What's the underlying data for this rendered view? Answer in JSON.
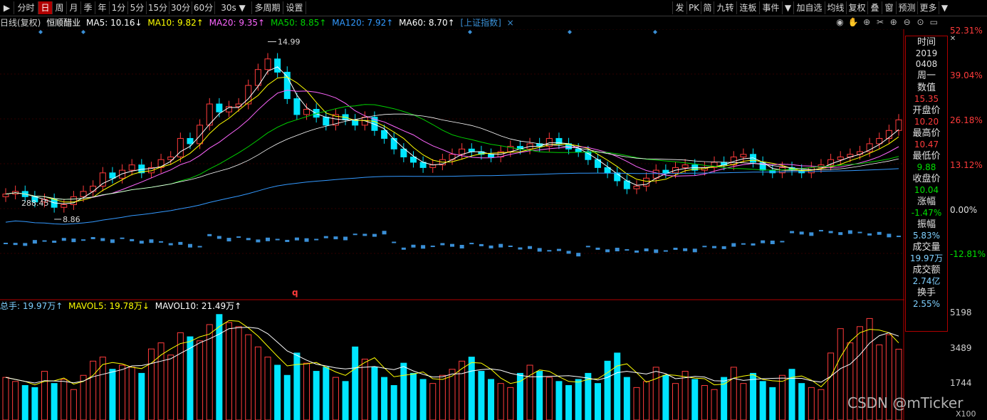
{
  "toolbar": {
    "left": [
      {
        "id": "menu",
        "label": "▶",
        "w": 20
      },
      {
        "id": "fenshi",
        "label": "分时",
        "w": 34
      },
      {
        "id": "ri",
        "label": "日",
        "w": 20,
        "active": true
      },
      {
        "id": "zhou",
        "label": "周",
        "w": 20
      },
      {
        "id": "yue",
        "label": "月",
        "w": 20
      },
      {
        "id": "ji",
        "label": "季",
        "w": 20
      },
      {
        "id": "nian",
        "label": "年",
        "w": 20
      },
      {
        "id": "m1",
        "label": "1分",
        "w": 26
      },
      {
        "id": "m5",
        "label": "5分",
        "w": 26
      },
      {
        "id": "m15",
        "label": "15分",
        "w": 32
      },
      {
        "id": "m30",
        "label": "30分",
        "w": 32
      },
      {
        "id": "m60",
        "label": "60分",
        "w": 32
      },
      {
        "id": "s30",
        "label": "30s ▼",
        "w": 52
      },
      {
        "id": "duozhouqi",
        "label": "多周期",
        "w": 44
      },
      {
        "id": "shezhi",
        "label": "设置",
        "w": 32
      }
    ],
    "right": [
      {
        "id": "fa",
        "label": "发",
        "w": 20
      },
      {
        "id": "pk",
        "label": "PK",
        "w": 20
      },
      {
        "id": "jian",
        "label": "简",
        "w": 18
      },
      {
        "id": "jiuzhuan",
        "label": "九转",
        "w": 32
      },
      {
        "id": "lianban",
        "label": "连板",
        "w": 32
      },
      {
        "id": "shijian",
        "label": "事件",
        "w": 32
      },
      {
        "id": "dd",
        "label": "▼",
        "w": 16
      },
      {
        "id": "jiazixuan",
        "label": "加自选",
        "w": 44
      },
      {
        "id": "junxian",
        "label": "均线",
        "w": 30
      },
      {
        "id": "fuquan",
        "label": "复权",
        "w": 30
      },
      {
        "id": "die",
        "label": "叠",
        "w": 20
      },
      {
        "id": "chuang",
        "label": "窗",
        "w": 20
      },
      {
        "id": "yuce",
        "label": "预测",
        "w": 30
      },
      {
        "id": "gengduo",
        "label": "更多",
        "w": 30
      },
      {
        "id": "arrow",
        "label": "▼",
        "w": 16
      }
    ]
  },
  "legend": {
    "kind": "日线(复权)",
    "name": "恒顺醋业",
    "ma5": "MA5: 10.16↓",
    "ma10": "MA10: 9.82↑",
    "ma20": "MA20: 9.35↑",
    "ma50": "MA50: 8.85↑",
    "ma120": "MA120: 7.92↑",
    "ma60": "MA60: 8.70↑",
    "index": "[上证指数]",
    "close": "×"
  },
  "vol_legend": {
    "total": "总手: 19.97万↑",
    "mavol5": "MAVOL5: 19.78万↓",
    "mavol10": "MAVOL10: 21.49万↑"
  },
  "axis_right": {
    "pct": [
      "52.31%",
      "39.04%",
      "26.18%",
      "13.12%",
      "0.00%",
      "-12.81%"
    ],
    "vol": [
      "5198",
      "3489",
      "1744"
    ],
    "unit": "X100"
  },
  "price_annotations": {
    "high": "14.99",
    "low": "8.86",
    "index_low": "288.45",
    "marker": "q"
  },
  "info": {
    "items": [
      {
        "label": "时间",
        "value": "2019",
        "color": "#e0e0e0"
      },
      {
        "label": "",
        "value": "0408",
        "color": "#e0e0e0"
      },
      {
        "label": "",
        "value": "周一",
        "color": "#e0e0e0",
        "big": true
      },
      {
        "label": "数值",
        "value": "15.35",
        "color": "#ff3b3b"
      },
      {
        "label": "开盘价",
        "value": "10.20",
        "color": "#ff3b3b"
      },
      {
        "label": "最高价",
        "value": "10.47",
        "color": "#ff3b3b"
      },
      {
        "label": "最低价",
        "value": "9.88",
        "color": "#00e000"
      },
      {
        "label": "收盘价",
        "value": "10.04",
        "color": "#00e000"
      },
      {
        "label": "涨幅",
        "value": "-1.47%",
        "color": "#00e000"
      },
      {
        "label": "振幅",
        "value": "5.83%",
        "color": "#7fd0ff"
      },
      {
        "label": "成交量",
        "value": "19.97万",
        "color": "#7fd0ff"
      },
      {
        "label": "成交额",
        "value": "2.74亿",
        "color": "#7fd0ff"
      },
      {
        "label": "换手",
        "value": "2.55%",
        "color": "#7fd0ff"
      }
    ]
  },
  "watermark": "CSDN @mTicker",
  "colors": {
    "up": "#ff3b3b",
    "down": "#00e5ff",
    "ma5": "#ffffff",
    "ma10": "#ffff00",
    "ma20": "#ff66ff",
    "ma50": "#00d000",
    "ma120": "#3399ff",
    "ma60": "#ffffff",
    "index": "#3a8fd6"
  },
  "chart_data": {
    "type": "candlestick",
    "closes": [
      9.5,
      9.6,
      9.4,
      9.2,
      9.3,
      9.0,
      9.1,
      9.4,
      9.6,
      9.8,
      10.3,
      10.1,
      10.4,
      10.6,
      10.3,
      10.5,
      10.8,
      10.9,
      11.6,
      11.4,
      12.1,
      12.9,
      12.6,
      12.8,
      12.9,
      13.6,
      14.2,
      14.6,
      14.1,
      13.1,
      12.5,
      12.7,
      12.4,
      12.1,
      12.5,
      12.3,
      12.1,
      12.4,
      11.9,
      11.6,
      11.2,
      10.9,
      10.7,
      10.5,
      10.6,
      10.8,
      11.0,
      11.2,
      11.1,
      11.0,
      10.9,
      11.1,
      11.3,
      11.2,
      11.4,
      11.3,
      11.6,
      11.4,
      11.2,
      11.1,
      10.8,
      10.5,
      10.3,
      10.0,
      9.7,
      9.8,
      10.1,
      10.4,
      10.3,
      10.5,
      10.6,
      10.4,
      10.5,
      10.7,
      10.6,
      10.9,
      11.0,
      10.7,
      10.4,
      10.3,
      10.5,
      10.4,
      10.3,
      10.5,
      10.6,
      10.8,
      10.9,
      11.0,
      11.1,
      11.4,
      11.6,
      11.9,
      12.3
    ],
    "volumes": [
      2100,
      1900,
      1700,
      1600,
      2400,
      1800,
      2000,
      1500,
      2200,
      2900,
      3100,
      2500,
      2700,
      2600,
      2300,
      3500,
      3800,
      3200,
      4300,
      4100,
      3900,
      4700,
      5198,
      4800,
      4600,
      4200,
      3600,
      3100,
      2700,
      2200,
      3300,
      2800,
      2400,
      2600,
      2100,
      1900,
      3600,
      3000,
      2600,
      2100,
      1700,
      2800,
      2300,
      2000,
      1800,
      2200,
      2500,
      2900,
      3100,
      2400,
      2000,
      1800,
      1600,
      2300,
      2700,
      2400,
      2100,
      1900,
      1700,
      2000,
      2300,
      1800,
      2900,
      3300,
      2100,
      1600,
      1900,
      2600,
      2200,
      1800,
      2400,
      2000,
      1700,
      1500,
      2100,
      2600,
      1800,
      2300,
      1900,
      1600,
      2200,
      2500,
      1800,
      1600,
      1500,
      3300,
      4500,
      3800,
      4600,
      5000,
      3700,
      4200,
      3489
    ],
    "ylim_pct": [
      -12.81,
      52.31
    ]
  }
}
